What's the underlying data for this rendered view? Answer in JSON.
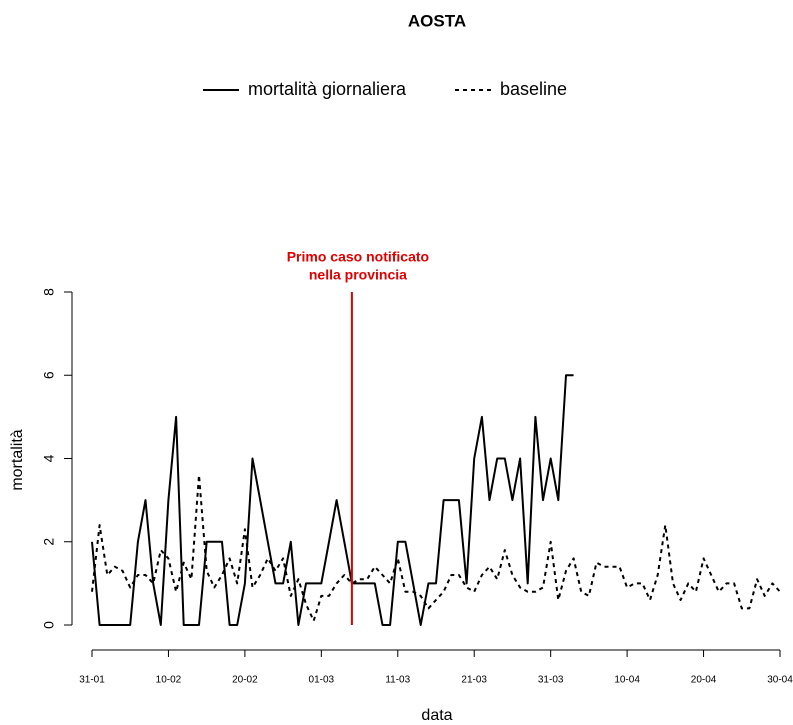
{
  "chart_data": {
    "type": "line",
    "title": "AOSTA",
    "xlabel": "data",
    "ylabel": "mortalità",
    "categories": [
      "31-01",
      null,
      null,
      null,
      null,
      null,
      null,
      null,
      null,
      null,
      "10-02",
      null,
      null,
      null,
      null,
      null,
      null,
      null,
      null,
      null,
      "20-02",
      null,
      null,
      null,
      null,
      null,
      null,
      null,
      null,
      null,
      "01-03",
      null,
      null,
      null,
      null,
      null,
      null,
      null,
      null,
      null,
      "11-03",
      null,
      null,
      null,
      null,
      null,
      null,
      null,
      null,
      null,
      "21-03",
      null,
      null,
      null,
      null,
      null,
      null,
      null,
      null,
      null,
      "31-03",
      null,
      null,
      null,
      null,
      null,
      null,
      null,
      null,
      null,
      "10-04",
      null,
      null,
      null,
      null,
      null,
      null,
      null,
      null,
      null,
      "20-04",
      null,
      null,
      null,
      null,
      null,
      null,
      null,
      null,
      null,
      "30-04"
    ],
    "series": [
      {
        "name": "mortalità giornaliera",
        "color": "#000000",
        "line_style": "solid",
        "values": [
          2,
          0,
          0,
          0,
          0,
          0,
          2,
          3,
          1,
          0,
          3,
          5,
          0,
          0,
          0,
          2,
          2,
          2,
          0,
          0,
          1,
          4,
          3,
          2,
          1,
          1,
          2,
          0,
          1,
          1,
          1,
          2,
          3,
          2,
          1,
          1,
          1,
          1,
          0,
          0,
          2,
          2,
          1,
          0,
          1,
          1,
          3,
          3,
          3,
          1,
          4,
          5,
          3,
          4,
          4,
          3,
          4,
          1,
          5,
          3,
          4,
          3,
          6,
          6,
          null,
          null,
          null,
          null,
          null,
          null,
          null,
          null,
          null,
          null,
          null,
          null,
          null,
          null,
          null,
          null,
          null,
          null,
          null,
          null,
          null,
          null,
          null,
          null,
          null,
          null,
          null
        ]
      },
      {
        "name": "baseline",
        "color": "#000000",
        "line_style": "dotted",
        "values": [
          0.8,
          2.4,
          1.2,
          1.4,
          1.3,
          0.9,
          1.2,
          1.2,
          1.0,
          1.8,
          1.6,
          0.8,
          1.5,
          1.1,
          3.6,
          1.3,
          0.9,
          1.2,
          1.6,
          1.0,
          2.3,
          0.9,
          1.2,
          1.6,
          1.3,
          1.6,
          0.7,
          1.1,
          0.5,
          0.1,
          0.7,
          0.7,
          1.0,
          1.2,
          1.0,
          1.1,
          1.1,
          1.4,
          1.2,
          1.0,
          1.6,
          0.8,
          0.8,
          0.7,
          0.4,
          0.6,
          0.8,
          1.2,
          1.2,
          0.9,
          0.8,
          1.2,
          1.4,
          1.1,
          1.8,
          1.2,
          0.9,
          0.8,
          0.8,
          0.9,
          2.0,
          0.6,
          1.3,
          1.6,
          0.8,
          0.7,
          1.5,
          1.4,
          1.4,
          1.4,
          0.9,
          1.0,
          1.0,
          0.6,
          1.2,
          2.4,
          1.0,
          0.6,
          1.0,
          0.8,
          1.6,
          1.2,
          0.8,
          1.0,
          1.0,
          0.4,
          0.4,
          1.1,
          0.7,
          1.0,
          0.8
        ]
      }
    ],
    "ylim": [
      0,
      8
    ],
    "yticks": [
      0,
      2,
      4,
      6,
      8
    ],
    "event": {
      "index": 34,
      "color": "#e00000",
      "label": [
        "Primo caso notificato",
        "nella provincia"
      ]
    }
  }
}
